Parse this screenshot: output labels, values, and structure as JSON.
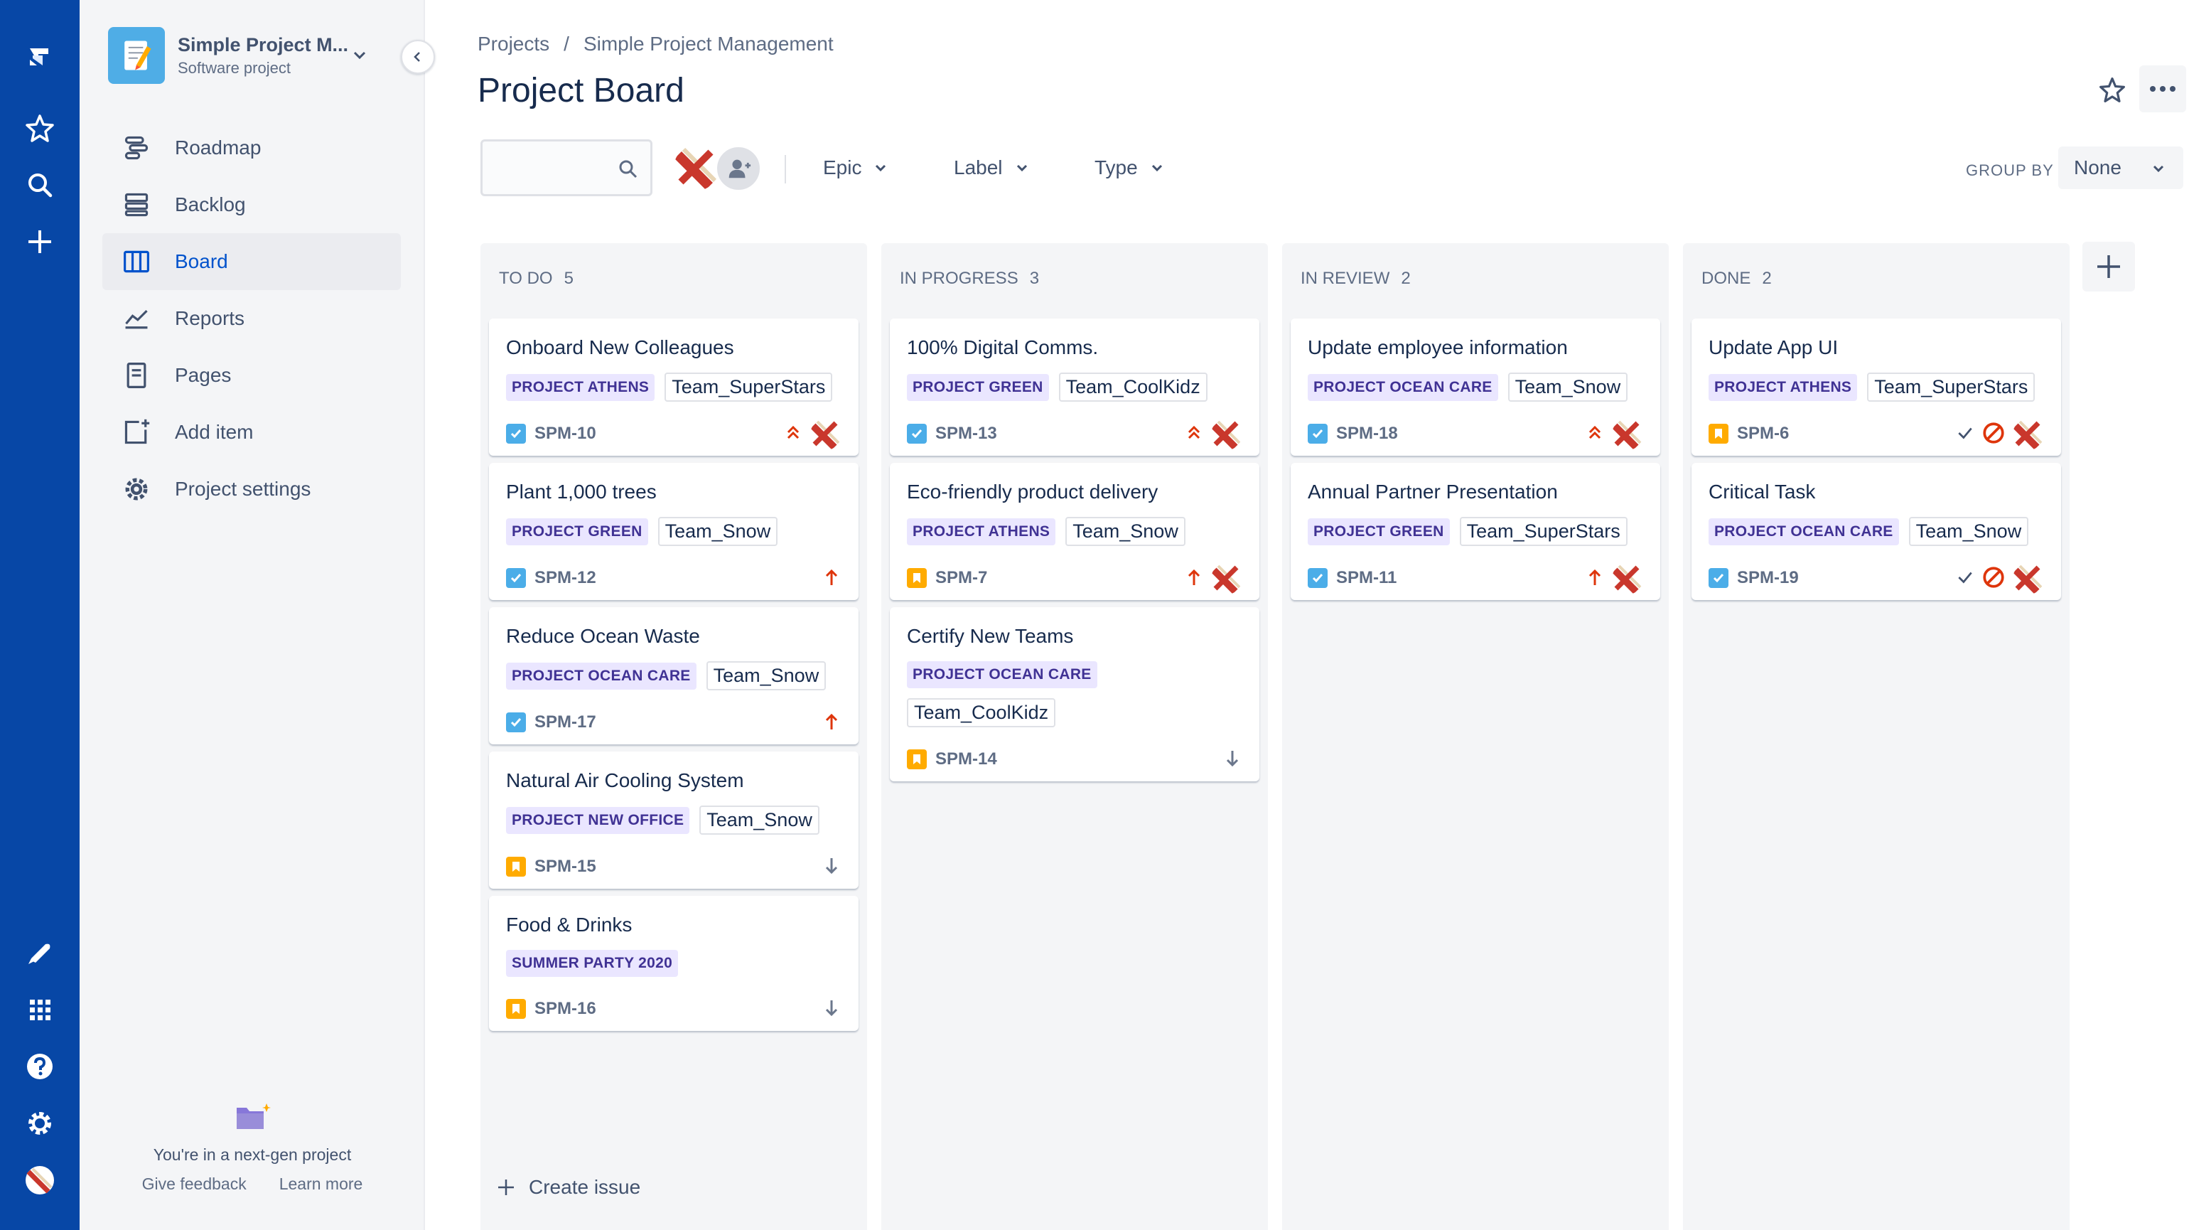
{
  "colors": {
    "rail": "#0747A6",
    "accent": "#0052CC",
    "epic_bg": "#EAE6FF",
    "epic_text": "#403294",
    "priority_high": "#DE350B",
    "priority_low": "#6B778C",
    "task": "#4BADE8",
    "story": "#FFAB00"
  },
  "project": {
    "name": "Simple Project M...",
    "type": "Software project"
  },
  "sidebar": {
    "items": [
      {
        "label": "Roadmap",
        "icon": "roadmap-icon"
      },
      {
        "label": "Backlog",
        "icon": "backlog-icon"
      },
      {
        "label": "Board",
        "icon": "board-icon",
        "active": true
      },
      {
        "label": "Reports",
        "icon": "reports-icon"
      },
      {
        "label": "Pages",
        "icon": "pages-icon"
      },
      {
        "label": "Add item",
        "icon": "add-item-icon"
      },
      {
        "label": "Project settings",
        "icon": "gear-icon"
      }
    ],
    "footer": {
      "text": "You're in a next-gen project",
      "feedback": "Give feedback",
      "learn": "Learn more"
    }
  },
  "breadcrumb": {
    "root": "Projects",
    "separator": "/",
    "current": "Simple Project Management"
  },
  "page": {
    "title": "Project Board"
  },
  "filters": {
    "search_placeholder": "",
    "epic": "Epic",
    "label": "Label",
    "type": "Type",
    "group_by_label": "GROUP BY",
    "group_by_value": "None"
  },
  "board": {
    "columns": [
      {
        "title": "TO DO",
        "count": "5",
        "cards": [
          {
            "title": "Onboard New Colleagues",
            "epic": "PROJECT ATHENS",
            "label": "Team_SuperStars",
            "type": "task",
            "key": "SPM-10",
            "priority": "highest",
            "assigned": true
          },
          {
            "title": "Plant 1,000 trees",
            "epic": "PROJECT GREEN",
            "label": "Team_Snow",
            "type": "task",
            "key": "SPM-12",
            "priority": "high",
            "assigned": false
          },
          {
            "title": "Reduce Ocean Waste",
            "epic": "PROJECT OCEAN CARE",
            "label": "Team_Snow",
            "type": "task",
            "key": "SPM-17",
            "priority": "high",
            "assigned": false
          },
          {
            "title": "Natural Air Cooling System",
            "epic": "PROJECT NEW OFFICE",
            "label": "Team_Snow",
            "type": "story",
            "key": "SPM-15",
            "priority": "low",
            "assigned": false
          },
          {
            "title": "Food & Drinks",
            "epic": "SUMMER PARTY 2020",
            "label": "",
            "type": "story",
            "key": "SPM-16",
            "priority": "low",
            "assigned": false
          }
        ]
      },
      {
        "title": "IN PROGRESS",
        "count": "3",
        "cards": [
          {
            "title": "100% Digital Comms.",
            "epic": "PROJECT GREEN",
            "label": "Team_CoolKidz",
            "type": "task",
            "key": "SPM-13",
            "priority": "highest",
            "assigned": true
          },
          {
            "title": "Eco-friendly product delivery",
            "epic": "PROJECT ATHENS",
            "label": "Team_Snow",
            "type": "story",
            "key": "SPM-7",
            "priority": "high",
            "assigned": true
          },
          {
            "title": "Certify New Teams",
            "epic": "PROJECT OCEAN CARE",
            "label": "Team_CoolKidz",
            "type": "story",
            "key": "SPM-14",
            "priority": "low",
            "assigned": false
          }
        ]
      },
      {
        "title": "IN REVIEW",
        "count": "2",
        "cards": [
          {
            "title": "Update employee information",
            "epic": "PROJECT OCEAN CARE",
            "label": "Team_Snow",
            "type": "task",
            "key": "SPM-18",
            "priority": "highest",
            "assigned": true
          },
          {
            "title": "Annual Partner Presentation",
            "epic": "PROJECT GREEN",
            "label": "Team_SuperStars",
            "type": "task",
            "key": "SPM-11",
            "priority": "high",
            "assigned": true
          }
        ]
      },
      {
        "title": "DONE",
        "count": "2",
        "cards": [
          {
            "title": "Update App UI",
            "epic": "PROJECT ATHENS",
            "label": "Team_SuperStars",
            "type": "story",
            "key": "SPM-6",
            "priority": "blocked",
            "done": true,
            "assigned": true
          },
          {
            "title": "Critical Task",
            "epic": "PROJECT OCEAN CARE",
            "label": "Team_Snow",
            "type": "task",
            "key": "SPM-19",
            "priority": "blocked",
            "done": true,
            "assigned": true
          }
        ]
      }
    ],
    "create_issue": "Create issue"
  }
}
